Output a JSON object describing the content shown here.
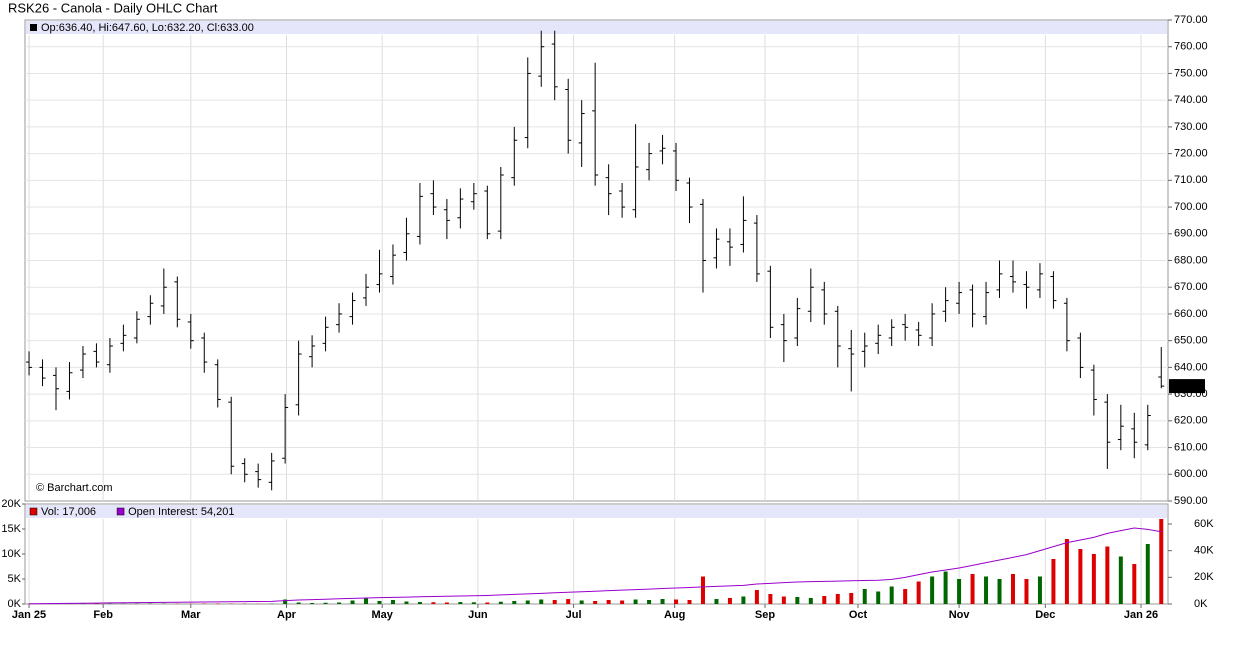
{
  "chart_data": [
    {
      "type": "ohlc",
      "title": "RSK26 - Canola - Daily OHLC Chart",
      "legend_text": "Op:636.40, Hi:647.60, Lo:632.20, Cl:633.00",
      "credit": "© Barchart.com",
      "last_price_label": "633.00",
      "color": "#000000",
      "xlim": [
        -0.3,
        84.5
      ],
      "xticks": [
        {
          "value": 0,
          "label": "Jan 25"
        },
        {
          "value": 5.5,
          "label": "Feb"
        },
        {
          "value": 12,
          "label": "Mar"
        },
        {
          "value": 19.1,
          "label": "Apr"
        },
        {
          "value": 26.2,
          "label": "May"
        },
        {
          "value": 33.3,
          "label": "Jun"
        },
        {
          "value": 40.4,
          "label": "Jul"
        },
        {
          "value": 47.9,
          "label": "Aug"
        },
        {
          "value": 54.6,
          "label": "Sep"
        },
        {
          "value": 61.5,
          "label": "Oct"
        },
        {
          "value": 69,
          "label": "Nov"
        },
        {
          "value": 75.4,
          "label": "Dec"
        },
        {
          "value": 82.5,
          "label": "Jan 26"
        }
      ],
      "ylim": [
        590,
        770
      ],
      "yticks": [
        {
          "value": 590,
          "label": "590.00"
        },
        {
          "value": 600,
          "label": "600.00"
        },
        {
          "value": 610,
          "label": "610.00"
        },
        {
          "value": 620,
          "label": "620.00"
        },
        {
          "value": 630,
          "label": "630.00"
        },
        {
          "value": 640,
          "label": "640.00"
        },
        {
          "value": 650,
          "label": "650.00"
        },
        {
          "value": 660,
          "label": "660.00"
        },
        {
          "value": 670,
          "label": "670.00"
        },
        {
          "value": 680,
          "label": "680.00"
        },
        {
          "value": 690,
          "label": "690.00"
        },
        {
          "value": 700,
          "label": "700.00"
        },
        {
          "value": 710,
          "label": "710.00"
        },
        {
          "value": 720,
          "label": "720.00"
        },
        {
          "value": 730,
          "label": "730.00"
        },
        {
          "value": 740,
          "label": "740.00"
        },
        {
          "value": 750,
          "label": "750.00"
        },
        {
          "value": 760,
          "label": "760.00"
        },
        {
          "value": 770,
          "label": "770.00"
        }
      ],
      "grid": true,
      "open": [
        642,
        640,
        637,
        631,
        639,
        646,
        641,
        649,
        651,
        659,
        663,
        672,
        657,
        651,
        641,
        627,
        604,
        601,
        597,
        606,
        626,
        644,
        649,
        656,
        659,
        666,
        671,
        674,
        683,
        689,
        705,
        699,
        696,
        702,
        706,
        691,
        711,
        726,
        749,
        761,
        744,
        724,
        736,
        711,
        706,
        699,
        714,
        721,
        721,
        709,
        701,
        681,
        687,
        686,
        694,
        676,
        656,
        651,
        661,
        669,
        661,
        647,
        646,
        649,
        651,
        656,
        654,
        651,
        661,
        664,
        669,
        659,
        669,
        674,
        671,
        669,
        674,
        664,
        651,
        639,
        627,
        613,
        617,
        611,
        636.4
      ],
      "high": [
        646,
        643,
        640,
        642,
        648,
        649,
        651,
        656,
        661,
        667,
        677,
        674,
        660,
        653,
        643,
        629,
        606,
        604,
        608,
        630,
        650,
        652,
        659,
        664,
        668,
        675,
        684,
        686,
        696,
        709,
        710,
        703,
        707,
        709,
        708,
        715,
        730,
        756,
        766,
        766,
        748,
        740,
        754,
        716,
        709,
        731,
        724,
        727,
        724,
        711,
        703,
        692,
        692,
        704,
        697,
        678,
        660,
        666,
        677,
        672,
        663,
        654,
        653,
        656,
        658,
        660,
        657,
        664,
        670,
        672,
        671,
        672,
        680,
        680,
        676,
        679,
        676,
        666,
        653,
        641,
        630,
        626,
        623,
        626,
        647.6
      ],
      "low": [
        637,
        633,
        624,
        628,
        636,
        640,
        638,
        646,
        649,
        656,
        660,
        655,
        647,
        638,
        625,
        600,
        597,
        595,
        594,
        604,
        622,
        640,
        646,
        653,
        656,
        663,
        668,
        671,
        680,
        686,
        697,
        688,
        692,
        699,
        688,
        688,
        708,
        722,
        745,
        740,
        720,
        715,
        708,
        697,
        696,
        696,
        710,
        716,
        706,
        694,
        668,
        677,
        678,
        683,
        672,
        651,
        642,
        648,
        657,
        656,
        640,
        631,
        640,
        645,
        648,
        650,
        648,
        648,
        657,
        660,
        655,
        656,
        666,
        668,
        662,
        666,
        662,
        646,
        636,
        622,
        602,
        609,
        606,
        609,
        632.2
      ],
      "close": [
        640,
        636,
        632,
        638,
        645,
        642,
        648,
        652,
        658,
        664,
        670,
        658,
        650,
        642,
        628,
        603,
        600,
        598,
        605,
        625,
        645,
        648,
        655,
        660,
        665,
        670,
        675,
        682,
        690,
        704,
        700,
        695,
        703,
        705,
        690,
        712,
        725,
        750,
        760,
        745,
        725,
        735,
        712,
        705,
        700,
        715,
        720,
        722,
        710,
        700,
        680,
        688,
        685,
        695,
        675,
        655,
        650,
        662,
        670,
        660,
        648,
        645,
        648,
        652,
        655,
        655,
        652,
        660,
        665,
        668,
        660,
        668,
        675,
        672,
        670,
        675,
        665,
        650,
        640,
        628,
        612,
        618,
        612,
        622,
        633
      ]
    },
    {
      "type": "volume",
      "xlim": [
        -0.3,
        84.5
      ],
      "xticks": [
        {
          "value": 0,
          "label": "Jan 25"
        },
        {
          "value": 5.5,
          "label": "Feb"
        },
        {
          "value": 12,
          "label": "Mar"
        },
        {
          "value": 19.1,
          "label": "Apr"
        },
        {
          "value": 26.2,
          "label": "May"
        },
        {
          "value": 33.3,
          "label": "Jun"
        },
        {
          "value": 40.4,
          "label": "Jul"
        },
        {
          "value": 47.9,
          "label": "Aug"
        },
        {
          "value": 54.6,
          "label": "Sep"
        },
        {
          "value": 61.5,
          "label": "Oct"
        },
        {
          "value": 69,
          "label": "Nov"
        },
        {
          "value": 75.4,
          "label": "Dec"
        },
        {
          "value": 82.5,
          "label": "Jan 26"
        }
      ],
      "ylim": [
        0,
        20000
      ],
      "yticks": [
        {
          "value": 0,
          "label": "0K"
        },
        {
          "value": 5000,
          "label": "5K"
        },
        {
          "value": 10000,
          "label": "10K"
        },
        {
          "value": 15000,
          "label": "15K"
        },
        {
          "value": 20000,
          "label": "20K"
        }
      ],
      "y2lim": [
        0,
        75000
      ],
      "y2ticks": [
        {
          "value": 0,
          "label": "0K"
        },
        {
          "value": 20000,
          "label": "20K"
        },
        {
          "value": 40000,
          "label": "40K"
        },
        {
          "value": 60000,
          "label": "60K"
        }
      ],
      "up_color": "#006600",
      "down_color": "#dd0000",
      "series": [
        {
          "name": "Vol: 17,006",
          "color": "#dd0000",
          "values": [
            50,
            80,
            60,
            40,
            70,
            90,
            60,
            50,
            80,
            100,
            70,
            60,
            50,
            80,
            90,
            60,
            70,
            40,
            60,
            900,
            300,
            200,
            250,
            300,
            700,
            1200,
            600,
            800,
            500,
            400,
            350,
            300,
            400,
            350,
            300,
            450,
            600,
            700,
            900,
            800,
            1000,
            700,
            600,
            800,
            700,
            900,
            800,
            1000,
            900,
            800,
            5500,
            1000,
            1200,
            1500,
            2800,
            2000,
            1500,
            1400,
            1200,
            1600,
            2000,
            2200,
            3000,
            2500,
            3500,
            3000,
            4500,
            5500,
            6500,
            5000,
            6000,
            5500,
            5000,
            6000,
            5000,
            5500,
            9000,
            13000,
            11000,
            10000,
            11500,
            9500,
            8000,
            12000,
            17006
          ]
        },
        {
          "name": "Open Interest: 54,201",
          "color": "#9900cc",
          "axis": "y2",
          "values": [
            200,
            300,
            400,
            500,
            600,
            700,
            800,
            900,
            1000,
            1100,
            1200,
            1300,
            1400,
            1500,
            1600,
            1700,
            1800,
            1900,
            2000,
            2500,
            3000,
            3300,
            3600,
            3900,
            4200,
            4500,
            4800,
            5000,
            5200,
            5400,
            5600,
            5800,
            6000,
            6200,
            6400,
            6800,
            7200,
            7600,
            8000,
            8400,
            8800,
            9200,
            9600,
            10000,
            10400,
            10800,
            11200,
            11600,
            12000,
            12400,
            12800,
            13200,
            13600,
            14000,
            15000,
            15500,
            16000,
            16500,
            16800,
            17000,
            17200,
            17400,
            17600,
            17800,
            18500,
            20000,
            22000,
            24000,
            25500,
            27000,
            29000,
            31000,
            33000,
            35000,
            37000,
            40000,
            43000,
            46000,
            48000,
            50000,
            53000,
            55000,
            57000,
            56000,
            54201
          ]
        }
      ]
    }
  ]
}
